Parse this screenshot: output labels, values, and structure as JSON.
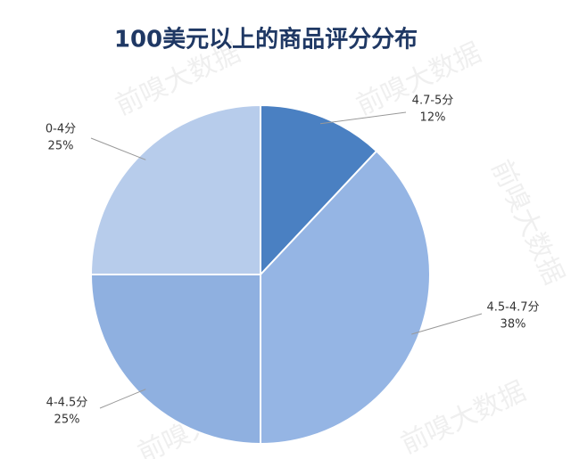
{
  "chart_data": {
    "type": "pie",
    "title": "100美元以上的商品评分分布",
    "categories": [
      "4.7-5分",
      "4.5-4.7分",
      "4-4.5分",
      "0-4分"
    ],
    "values": [
      12,
      38,
      25,
      25
    ],
    "value_labels": [
      "12%",
      "38%",
      "25%",
      "25%"
    ],
    "colors": [
      "#4a80c2",
      "#95b5e4",
      "#8fb0e0",
      "#b7cceb"
    ],
    "watermark": "前嗅大数据"
  }
}
